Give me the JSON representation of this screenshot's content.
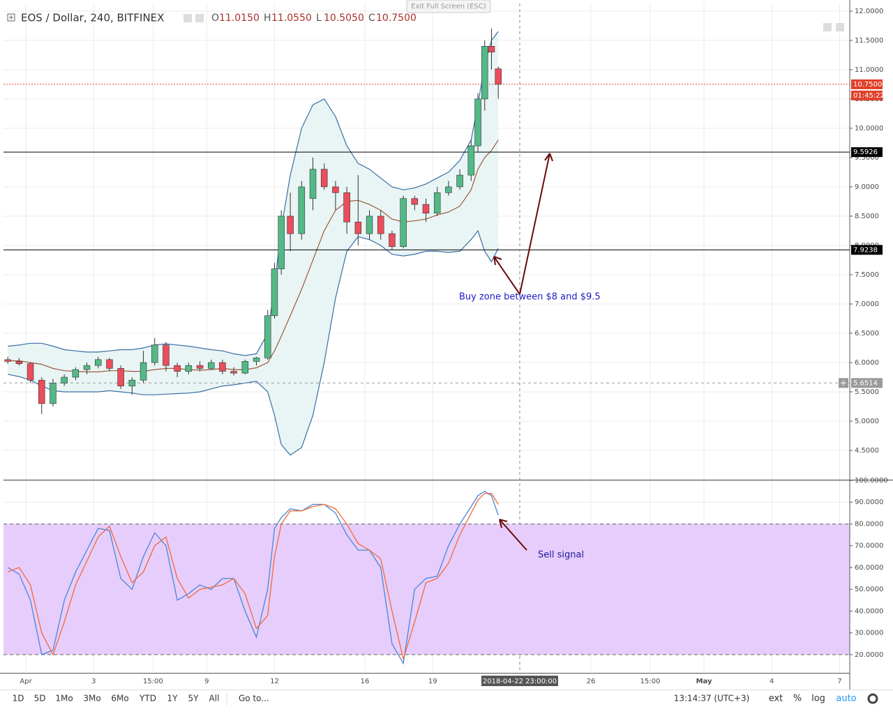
{
  "header": {
    "symbol": "EOS / Dollar, 240, BITFINEX",
    "ohlc": [
      {
        "key": "O",
        "value": "11.0150"
      },
      {
        "key": "H",
        "value": "11.0550"
      },
      {
        "key": "L",
        "value": "10.5050"
      },
      {
        "key": "C",
        "value": "10.7500"
      }
    ]
  },
  "exit_button": "Exit Full Screen (ESC)",
  "chart_data": [
    {
      "type": "candlestick",
      "x": [
        -0.8,
        -0.3,
        0.2,
        0.7,
        1.2,
        1.7,
        2.2,
        2.7,
        3.2,
        3.7,
        4.2,
        4.7,
        5.2,
        5.7,
        6.2,
        6.7,
        7.2,
        7.7,
        8.2,
        8.7,
        9.2,
        9.7,
        10.2,
        10.7,
        11.0,
        11.3,
        11.7,
        12.2,
        12.7,
        13.2,
        13.7,
        14.2,
        14.7,
        15.2,
        15.7,
        16.2,
        16.7,
        17.2,
        17.7,
        18.2,
        18.7,
        19.2,
        19.7,
        20.0,
        20.3,
        20.6,
        20.9
      ],
      "open": [
        6.05,
        6.02,
        5.98,
        5.7,
        5.3,
        5.65,
        5.75,
        5.88,
        5.95,
        6.05,
        5.9,
        5.6,
        5.7,
        6.0,
        6.3,
        5.95,
        5.85,
        5.95,
        5.9,
        6.0,
        5.85,
        5.82,
        6.02,
        6.08,
        6.8,
        7.6,
        8.5,
        8.2,
        8.8,
        9.3,
        9.0,
        8.9,
        8.4,
        8.2,
        8.5,
        8.2,
        7.98,
        8.8,
        8.7,
        8.55,
        8.9,
        9.0,
        9.2,
        9.7,
        10.5,
        11.4,
        11.015
      ],
      "high": [
        6.1,
        6.08,
        6.0,
        5.75,
        5.72,
        5.8,
        5.92,
        6.0,
        6.1,
        6.08,
        5.95,
        5.75,
        6.2,
        6.42,
        6.35,
        6.0,
        6.0,
        6.02,
        6.05,
        6.05,
        5.92,
        6.05,
        6.1,
        6.9,
        7.7,
        8.6,
        8.9,
        9.1,
        9.5,
        9.4,
        9.1,
        9.0,
        9.2,
        8.6,
        8.6,
        8.25,
        8.85,
        8.85,
        8.8,
        9.0,
        9.1,
        9.3,
        9.8,
        10.6,
        11.5,
        11.7,
        11.055
      ],
      "low": [
        5.98,
        5.95,
        5.65,
        5.12,
        5.25,
        5.6,
        5.7,
        5.8,
        5.9,
        5.85,
        5.55,
        5.45,
        5.65,
        5.95,
        5.85,
        5.75,
        5.8,
        5.85,
        5.88,
        5.8,
        5.78,
        5.8,
        5.95,
        6.05,
        6.75,
        7.5,
        7.9,
        8.1,
        8.6,
        8.95,
        8.6,
        8.2,
        8.0,
        8.1,
        8.1,
        7.92,
        7.95,
        8.6,
        8.4,
        8.5,
        8.85,
        8.95,
        9.1,
        9.6,
        10.3,
        11.0,
        10.505
      ],
      "close": [
        6.02,
        5.98,
        5.7,
        5.3,
        5.65,
        5.75,
        5.88,
        5.95,
        6.05,
        5.9,
        5.6,
        5.7,
        6.0,
        6.3,
        5.95,
        5.85,
        5.95,
        5.9,
        6.0,
        5.85,
        5.82,
        6.02,
        6.08,
        6.8,
        7.6,
        8.5,
        8.2,
        9.0,
        9.3,
        9.0,
        8.9,
        8.4,
        8.2,
        8.5,
        8.2,
        7.98,
        8.8,
        8.7,
        8.55,
        8.9,
        9.0,
        9.2,
        9.7,
        10.5,
        11.4,
        11.3,
        10.75
      ],
      "up_color": "#53b987",
      "down_color": "#eb4d5c",
      "band_fill": "#e9f4f4",
      "series": [
        {
          "color": "#3a6ea5",
          "values": [
            6.28,
            6.3,
            6.33,
            6.33,
            6.28,
            6.22,
            6.2,
            6.18,
            6.18,
            6.2,
            6.22,
            6.22,
            6.25,
            6.3,
            6.32,
            6.3,
            6.28,
            6.25,
            6.22,
            6.2,
            6.15,
            6.12,
            6.15,
            6.5,
            7.3,
            8.3,
            9.2,
            10.0,
            10.4,
            10.5,
            10.2,
            9.7,
            9.4,
            9.3,
            9.15,
            9.0,
            8.95,
            8.98,
            9.05,
            9.15,
            9.25,
            9.45,
            9.8,
            10.4,
            11.1,
            11.5,
            11.65
          ]
        },
        {
          "color": "#9c5a3c",
          "values": [
            6.03,
            6.03,
            6.0,
            5.97,
            5.9,
            5.86,
            5.85,
            5.84,
            5.84,
            5.86,
            5.86,
            5.85,
            5.85,
            5.88,
            5.9,
            5.9,
            5.88,
            5.87,
            5.88,
            5.9,
            5.88,
            5.88,
            5.91,
            6.0,
            6.2,
            6.45,
            6.8,
            7.25,
            7.75,
            8.25,
            8.6,
            8.75,
            8.77,
            8.7,
            8.6,
            8.45,
            8.4,
            8.42,
            8.45,
            8.52,
            8.57,
            8.67,
            8.95,
            9.3,
            9.5,
            9.62,
            9.8
          ]
        },
        {
          "color": "#3a6ea5",
          "values": [
            5.8,
            5.76,
            5.7,
            5.6,
            5.52,
            5.5,
            5.5,
            5.5,
            5.5,
            5.52,
            5.5,
            5.48,
            5.45,
            5.45,
            5.46,
            5.47,
            5.48,
            5.5,
            5.55,
            5.6,
            5.62,
            5.65,
            5.68,
            5.5,
            5.1,
            4.6,
            4.42,
            4.55,
            5.1,
            6.0,
            7.1,
            7.9,
            8.15,
            8.1,
            8.0,
            7.85,
            7.82,
            7.85,
            7.9,
            7.9,
            7.88,
            7.9,
            8.1,
            8.25,
            7.9,
            7.72,
            7.95
          ]
        }
      ],
      "xlim": [
        -0.99,
        36.45
      ],
      "xticks": [
        {
          "value": 0,
          "label": "Apr"
        },
        3,
        {
          "value": 5.625,
          "label": "15:00"
        },
        {
          "value": 8,
          "label": "9"
        },
        {
          "value": 11,
          "label": "12"
        },
        {
          "value": 15,
          "label": "16"
        },
        {
          "value": 18,
          "label": "19"
        },
        {
          "value": 25,
          "label": "26"
        },
        {
          "value": 27.625,
          "label": "15:00"
        },
        {
          "value": 30,
          "label": "May"
        },
        {
          "value": 33,
          "label": "4"
        },
        {
          "value": 36,
          "label": "7"
        }
      ],
      "ylim": [
        4.0,
        12.13
      ],
      "yticks": [
        {
          "value": 4.5,
          "label": "4.5000"
        },
        {
          "value": 5,
          "label": "5.0000"
        },
        {
          "value": 5.5,
          "label": "5.5000"
        },
        {
          "value": 6,
          "label": "6.0000"
        },
        {
          "value": 6.5,
          "label": "6.5000"
        },
        {
          "value": 7,
          "label": "7.0000"
        },
        {
          "value": 7.5,
          "label": "7.5000"
        },
        {
          "value": 8,
          "label": "8.0000"
        },
        {
          "value": 8.5,
          "label": "8.5000"
        },
        {
          "value": 9,
          "label": "9.0000"
        },
        {
          "value": 9.5,
          "label": "9.5000"
        },
        {
          "value": 10,
          "label": "10.0000"
        },
        {
          "value": 10.5,
          "label": "10.5000"
        },
        {
          "value": 11,
          "label": "11.0000"
        },
        {
          "value": 11.5,
          "label": "11.5000"
        },
        {
          "value": 12,
          "label": "12.0000"
        }
      ],
      "grid": true,
      "hlines": [
        {
          "value": 9.5926,
          "label": "9.5926",
          "color": "#000000",
          "style": "solid"
        },
        {
          "value": 7.9238,
          "label": "7.9238",
          "color": "#000000",
          "style": "solid"
        },
        {
          "value": 10.75,
          "label": "10.7500",
          "color": "#e0402a",
          "style": "dotted"
        },
        {
          "value": 5.6514,
          "label": "5.6514",
          "color": "#9a9a9a",
          "style": "dashed"
        }
      ],
      "countdown": "01:45:22",
      "crosshair": {
        "x": 21.85,
        "label": "2018-04-22 23:00:00"
      },
      "annotation": "Buy zone between $8 and $9.5"
    },
    {
      "type": "line",
      "x": [
        -0.8,
        -0.3,
        0.2,
        0.7,
        1.2,
        1.7,
        2.2,
        2.7,
        3.2,
        3.7,
        4.2,
        4.7,
        5.2,
        5.7,
        6.2,
        6.7,
        7.2,
        7.7,
        8.2,
        8.7,
        9.2,
        9.7,
        10.2,
        10.7,
        11.0,
        11.3,
        11.7,
        12.2,
        12.7,
        13.2,
        13.7,
        14.2,
        14.7,
        15.2,
        15.7,
        16.2,
        16.7,
        17.2,
        17.7,
        18.2,
        18.7,
        19.2,
        19.7,
        20.0,
        20.3,
        20.6,
        20.9
      ],
      "series": [
        {
          "color": "#4a86d8",
          "values": [
            60,
            57,
            45,
            20,
            22,
            45,
            58,
            68,
            78,
            77,
            55,
            50,
            65,
            76,
            70,
            45,
            48,
            52,
            50,
            55,
            55,
            40,
            28,
            50,
            78,
            83,
            87,
            86,
            89,
            89,
            85,
            75,
            68,
            68,
            60,
            25,
            16,
            50,
            55,
            56,
            70,
            80,
            88,
            93,
            95,
            93,
            84
          ]
        },
        {
          "color": "#f06a3a",
          "values": [
            58,
            60,
            52,
            30,
            20,
            35,
            52,
            63,
            74,
            79,
            65,
            53,
            58,
            70,
            74,
            55,
            46,
            50,
            51,
            52,
            55,
            48,
            32,
            38,
            65,
            80,
            86,
            86,
            88,
            89,
            87,
            80,
            71,
            68,
            64,
            40,
            18,
            35,
            53,
            55,
            62,
            75,
            85,
            91,
            94,
            94,
            89
          ]
        }
      ],
      "xlim": [
        -0.99,
        36.45
      ],
      "ylim": [
        12.6,
        100
      ],
      "yticks": [
        {
          "value": 20,
          "label": "20.0000"
        },
        {
          "value": 30,
          "label": "30.0000"
        },
        {
          "value": 40,
          "label": "40.0000"
        },
        {
          "value": 50,
          "label": "50.0000"
        },
        {
          "value": 60,
          "label": "60.0000"
        },
        {
          "value": 70,
          "label": "70.0000"
        },
        {
          "value": 80,
          "label": "80.0000"
        },
        {
          "value": 90,
          "label": "90.0000"
        },
        {
          "value": 100,
          "label": "100.0000"
        }
      ],
      "grid": true,
      "band": [
        20,
        80
      ],
      "band_color": "#e7cdfb",
      "annotation": "Sell signal"
    }
  ],
  "toolbar": {
    "ranges": [
      "1D",
      "5D",
      "1Mo",
      "3Mo",
      "6Mo",
      "YTD",
      "1Y",
      "5Y",
      "All"
    ],
    "goto": "Go to...",
    "clock": "13:14:37 (UTC+3)",
    "options": [
      "ext",
      "%",
      "log",
      "auto"
    ]
  }
}
